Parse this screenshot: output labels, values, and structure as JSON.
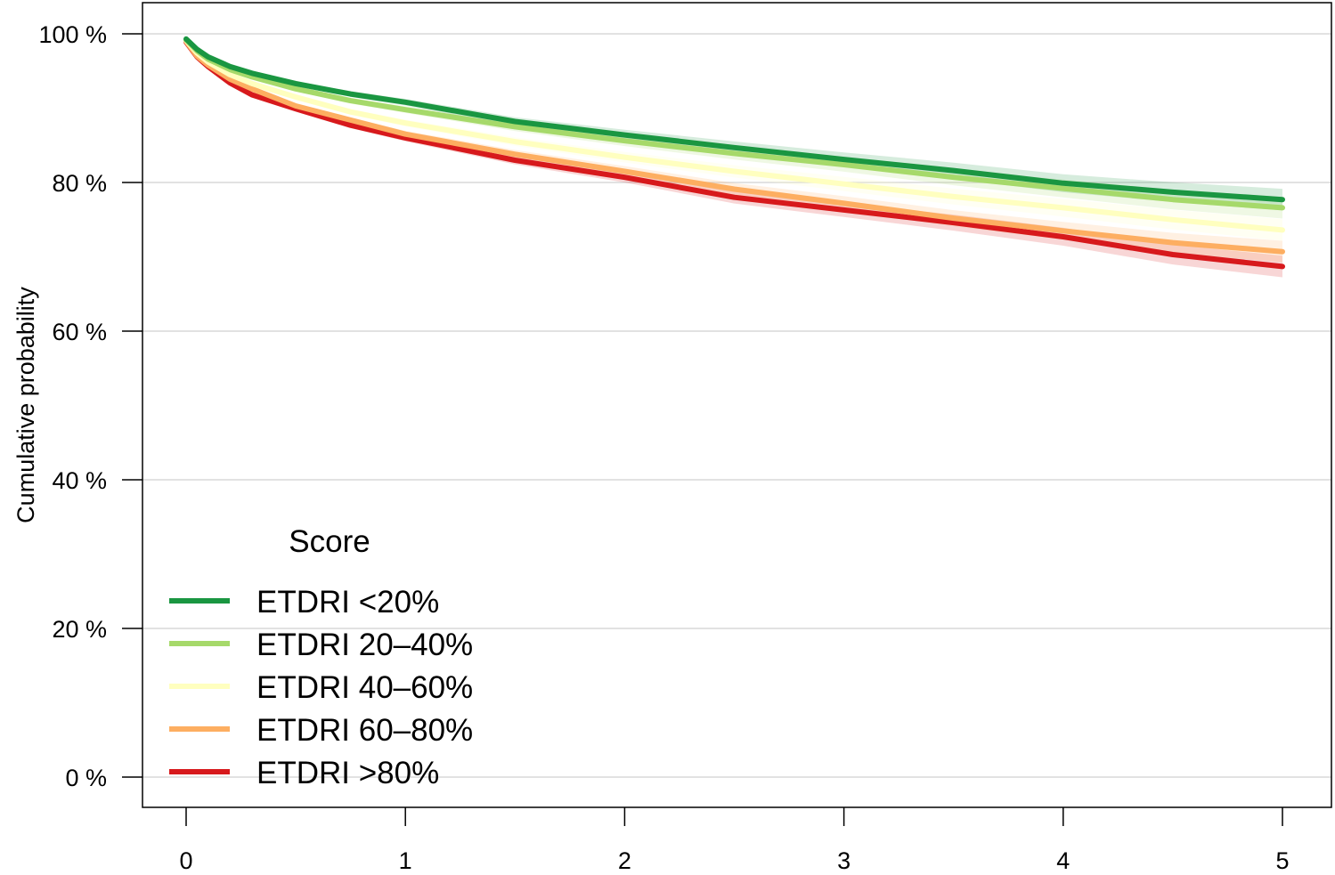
{
  "chart_data": {
    "type": "line",
    "title": "",
    "xlabel": "",
    "ylabel": "Cumulative probability",
    "xlim": [
      0,
      5
    ],
    "ylim": [
      0,
      100
    ],
    "x_ticks": [
      {
        "value": 0,
        "label": "0"
      },
      {
        "value": 1,
        "label": "1"
      },
      {
        "value": 2,
        "label": "2"
      },
      {
        "value": 3,
        "label": "3"
      },
      {
        "value": 4,
        "label": "4"
      },
      {
        "value": 5,
        "label": "5"
      }
    ],
    "y_ticks": [
      {
        "value": 0,
        "label": "0 %"
      },
      {
        "value": 20,
        "label": "20 %"
      },
      {
        "value": 40,
        "label": "40 %"
      },
      {
        "value": 60,
        "label": "60 %"
      },
      {
        "value": 80,
        "label": "80 %"
      },
      {
        "value": 100,
        "label": "100 %"
      }
    ],
    "grid": "horizontal",
    "legend_title": "Score",
    "legend_placement": "bottom-left",
    "x": [
      0,
      0.05,
      0.1,
      0.2,
      0.3,
      0.5,
      0.75,
      1,
      1.5,
      2,
      2.5,
      3,
      3.5,
      4,
      4.5,
      5
    ],
    "series": [
      {
        "name": "ETDRI <20%",
        "color": "#1a9641",
        "values": [
          99.3,
          97.9,
          96.9,
          95.6,
          94.7,
          93.3,
          91.9,
          90.8,
          88.2,
          86.4,
          84.7,
          83.1,
          81.6,
          79.9,
          78.7,
          77.7
        ]
      },
      {
        "name": "ETDRI 20–40%",
        "color": "#a6d96a",
        "values": [
          99.2,
          97.7,
          96.6,
          95.2,
          94.2,
          92.6,
          91.0,
          89.8,
          87.5,
          85.6,
          83.9,
          82.4,
          80.7,
          79.2,
          77.7,
          76.6
        ]
      },
      {
        "name": "ETDRI 40–60%",
        "color": "#ffffbf",
        "values": [
          99.1,
          97.4,
          96.2,
          94.5,
          93.3,
          91.5,
          89.5,
          88.0,
          85.5,
          83.4,
          81.5,
          79.8,
          78.1,
          76.6,
          75.0,
          73.6
        ]
      },
      {
        "name": "ETDRI 60–80%",
        "color": "#fdae61",
        "values": [
          99.0,
          97.0,
          95.8,
          93.9,
          92.6,
          90.3,
          88.4,
          86.5,
          83.8,
          81.5,
          79.1,
          77.2,
          75.2,
          73.5,
          71.9,
          70.7
        ]
      },
      {
        "name": "ETDRI >80%",
        "color": "#d7191c",
        "values": [
          98.9,
          96.9,
          95.6,
          93.4,
          91.8,
          89.9,
          87.7,
          86.0,
          83.0,
          80.7,
          78.0,
          76.3,
          74.6,
          72.7,
          70.3,
          68.7
        ]
      }
    ]
  }
}
